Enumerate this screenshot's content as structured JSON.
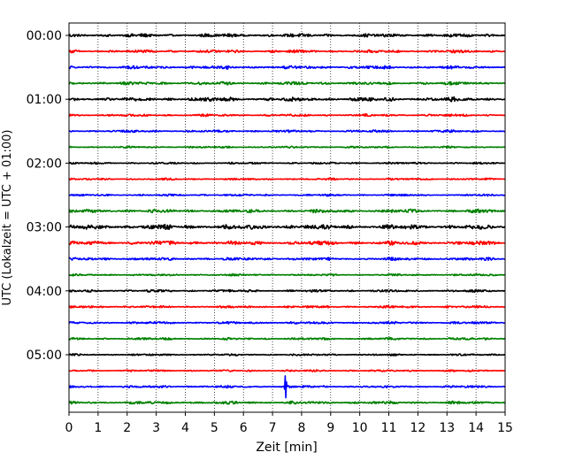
{
  "chart_data": {
    "type": "line",
    "title": "",
    "xlabel": "Zeit  [min]",
    "ylabel": "UTC (Lokalzeit = UTC + 01:00)",
    "xlim": [
      0,
      15
    ],
    "x_ticks": [
      "0",
      "1",
      "2",
      "3",
      "4",
      "5",
      "6",
      "7",
      "8",
      "9",
      "10",
      "11",
      "12",
      "13",
      "14",
      "15"
    ],
    "y_ticks": [
      "00:00",
      "01:00",
      "02:00",
      "03:00",
      "04:00",
      "05:00"
    ],
    "grid": "vertical dotted at each minute",
    "trace_interval_minutes": 15,
    "trace_colors": [
      "#000000",
      "#ff0000",
      "#0000ff",
      "#008000"
    ],
    "series": [
      {
        "start": "00:00",
        "color": "#000000",
        "amplitude": 0.22
      },
      {
        "start": "00:15",
        "color": "#ff0000",
        "amplitude": 0.18
      },
      {
        "start": "00:30",
        "color": "#0000ff",
        "amplitude": 0.2
      },
      {
        "start": "00:45",
        "color": "#008000",
        "amplitude": 0.2
      },
      {
        "start": "01:00",
        "color": "#000000",
        "amplitude": 0.25
      },
      {
        "start": "01:15",
        "color": "#ff0000",
        "amplitude": 0.15
      },
      {
        "start": "01:30",
        "color": "#0000ff",
        "amplitude": 0.15
      },
      {
        "start": "01:45",
        "color": "#008000",
        "amplitude": 0.12
      },
      {
        "start": "02:00",
        "color": "#000000",
        "amplitude": 0.12
      },
      {
        "start": "02:15",
        "color": "#ff0000",
        "amplitude": 0.12
      },
      {
        "start": "02:30",
        "color": "#0000ff",
        "amplitude": 0.12
      },
      {
        "start": "02:45",
        "color": "#008000",
        "amplitude": 0.22
      },
      {
        "start": "03:00",
        "color": "#000000",
        "amplitude": 0.3
      },
      {
        "start": "03:15",
        "color": "#ff0000",
        "amplitude": 0.25
      },
      {
        "start": "03:30",
        "color": "#0000ff",
        "amplitude": 0.18
      },
      {
        "start": "03:45",
        "color": "#008000",
        "amplitude": 0.12
      },
      {
        "start": "04:00",
        "color": "#000000",
        "amplitude": 0.15
      },
      {
        "start": "04:15",
        "color": "#ff0000",
        "amplitude": 0.15
      },
      {
        "start": "04:30",
        "color": "#0000ff",
        "amplitude": 0.15
      },
      {
        "start": "04:45",
        "color": "#008000",
        "amplitude": 0.15
      },
      {
        "start": "05:00",
        "color": "#000000",
        "amplitude": 0.12
      },
      {
        "start": "05:15",
        "color": "#ff0000",
        "amplitude": 0.12
      },
      {
        "start": "05:30",
        "color": "#0000ff",
        "amplitude": 0.15,
        "spike_minute": 7.45,
        "spike_amplitude": 1.6
      },
      {
        "start": "05:45",
        "color": "#008000",
        "amplitude": 0.18
      }
    ]
  }
}
